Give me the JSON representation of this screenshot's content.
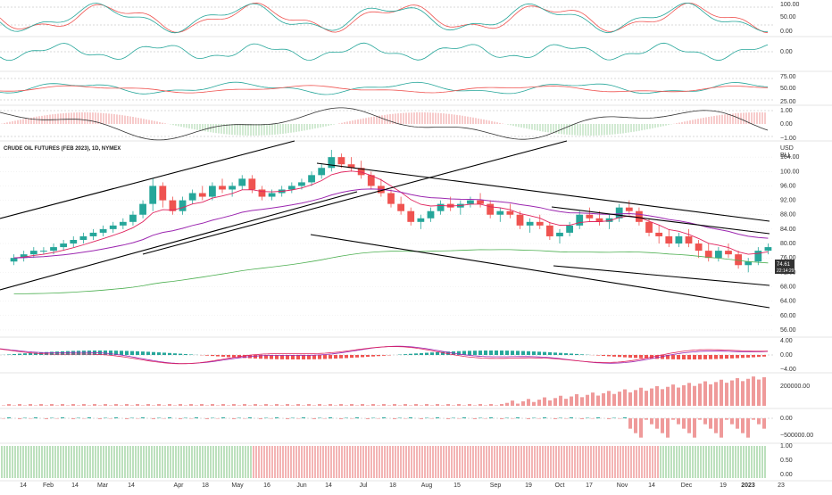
{
  "chart_data": {
    "type": "candlestick",
    "title": "CRUDE OIL FUTURES (FEB 2023), 1D, NYMEX",
    "currency": "USD",
    "unit": "BLL",
    "last_price": "74.61",
    "countdown": "22:14:29",
    "colors": {
      "up": "#26a69a",
      "down": "#ef5350",
      "ema_fast": "#e0245e",
      "ema_slow": "#9c27b0",
      "ma_long": "#4caf50",
      "trendline": "#000000",
      "grid": "#9e9e9e"
    },
    "x_labels": [
      "14",
      "Feb",
      "14",
      "Mar",
      "14",
      "Apr",
      "18",
      "May",
      "16",
      "Jun",
      "14",
      "Jul",
      "18",
      "Aug",
      "15",
      "Sep",
      "19",
      "Oct",
      "17",
      "Nov",
      "14",
      "Dec",
      "19",
      "2023",
      "23"
    ],
    "price_axis": [
      "104.00",
      "100.00",
      "96.00",
      "92.00",
      "88.00",
      "84.00",
      "80.00",
      "76.00",
      "72.00",
      "68.00",
      "64.00",
      "60.00",
      "56.00"
    ],
    "candles": [
      [
        75,
        77,
        74,
        76
      ],
      [
        76,
        78,
        75,
        77
      ],
      [
        77,
        79,
        76,
        78
      ],
      [
        78,
        79,
        77,
        78
      ],
      [
        78,
        80,
        77,
        79
      ],
      [
        79,
        81,
        78,
        80
      ],
      [
        80,
        82,
        79,
        81
      ],
      [
        81,
        83,
        80,
        82
      ],
      [
        82,
        84,
        81,
        83
      ],
      [
        83,
        85,
        82,
        84
      ],
      [
        84,
        86,
        83,
        85
      ],
      [
        85,
        87,
        84,
        86
      ],
      [
        86,
        89,
        85,
        88
      ],
      [
        88,
        92,
        87,
        91
      ],
      [
        91,
        98,
        89,
        96
      ],
      [
        96,
        97,
        90,
        92
      ],
      [
        92,
        93,
        88,
        89
      ],
      [
        89,
        93,
        88,
        92
      ],
      [
        92,
        95,
        91,
        94
      ],
      [
        94,
        96,
        92,
        93
      ],
      [
        93,
        97,
        92,
        96
      ],
      [
        96,
        98,
        94,
        95
      ],
      [
        95,
        97,
        93,
        96
      ],
      [
        96,
        99,
        95,
        98
      ],
      [
        98,
        99,
        94,
        95
      ],
      [
        95,
        96,
        92,
        93
      ],
      [
        93,
        95,
        92,
        94
      ],
      [
        94,
        96,
        93,
        95
      ],
      [
        95,
        97,
        94,
        96
      ],
      [
        96,
        98,
        95,
        97
      ],
      [
        97,
        100,
        96,
        99
      ],
      [
        99,
        102,
        98,
        101
      ],
      [
        101,
        106,
        100,
        104
      ],
      [
        104,
        105,
        101,
        102
      ],
      [
        102,
        104,
        100,
        101
      ],
      [
        101,
        103,
        98,
        99
      ],
      [
        99,
        100,
        95,
        96
      ],
      [
        96,
        98,
        93,
        94
      ],
      [
        94,
        95,
        90,
        91
      ],
      [
        91,
        93,
        88,
        89
      ],
      [
        89,
        90,
        85,
        86
      ],
      [
        86,
        88,
        84,
        87
      ],
      [
        87,
        90,
        86,
        89
      ],
      [
        89,
        92,
        88,
        91
      ],
      [
        91,
        93,
        89,
        90
      ],
      [
        90,
        92,
        88,
        91
      ],
      [
        91,
        93,
        90,
        92
      ],
      [
        92,
        94,
        90,
        91
      ],
      [
        91,
        92,
        87,
        88
      ],
      [
        88,
        90,
        86,
        89
      ],
      [
        89,
        91,
        87,
        88
      ],
      [
        88,
        89,
        84,
        85
      ],
      [
        85,
        87,
        83,
        86
      ],
      [
        86,
        88,
        84,
        85
      ],
      [
        85,
        86,
        81,
        82
      ],
      [
        82,
        84,
        80,
        83
      ],
      [
        83,
        86,
        82,
        85
      ],
      [
        85,
        89,
        84,
        88
      ],
      [
        88,
        90,
        86,
        87
      ],
      [
        87,
        89,
        85,
        86
      ],
      [
        86,
        88,
        84,
        87
      ],
      [
        87,
        91,
        86,
        90
      ],
      [
        90,
        92,
        88,
        89
      ],
      [
        89,
        90,
        85,
        86
      ],
      [
        86,
        87,
        82,
        83
      ],
      [
        83,
        85,
        80,
        82
      ],
      [
        82,
        84,
        79,
        80
      ],
      [
        80,
        83,
        79,
        82
      ],
      [
        82,
        84,
        79,
        80
      ],
      [
        80,
        81,
        76,
        78
      ],
      [
        78,
        80,
        75,
        76
      ],
      [
        76,
        79,
        75,
        78
      ],
      [
        78,
        80,
        76,
        77
      ],
      [
        77,
        78,
        73,
        74
      ],
      [
        74,
        76,
        72,
        75
      ],
      [
        75,
        79,
        74,
        78
      ],
      [
        78,
        80,
        77,
        79
      ]
    ]
  }
}
